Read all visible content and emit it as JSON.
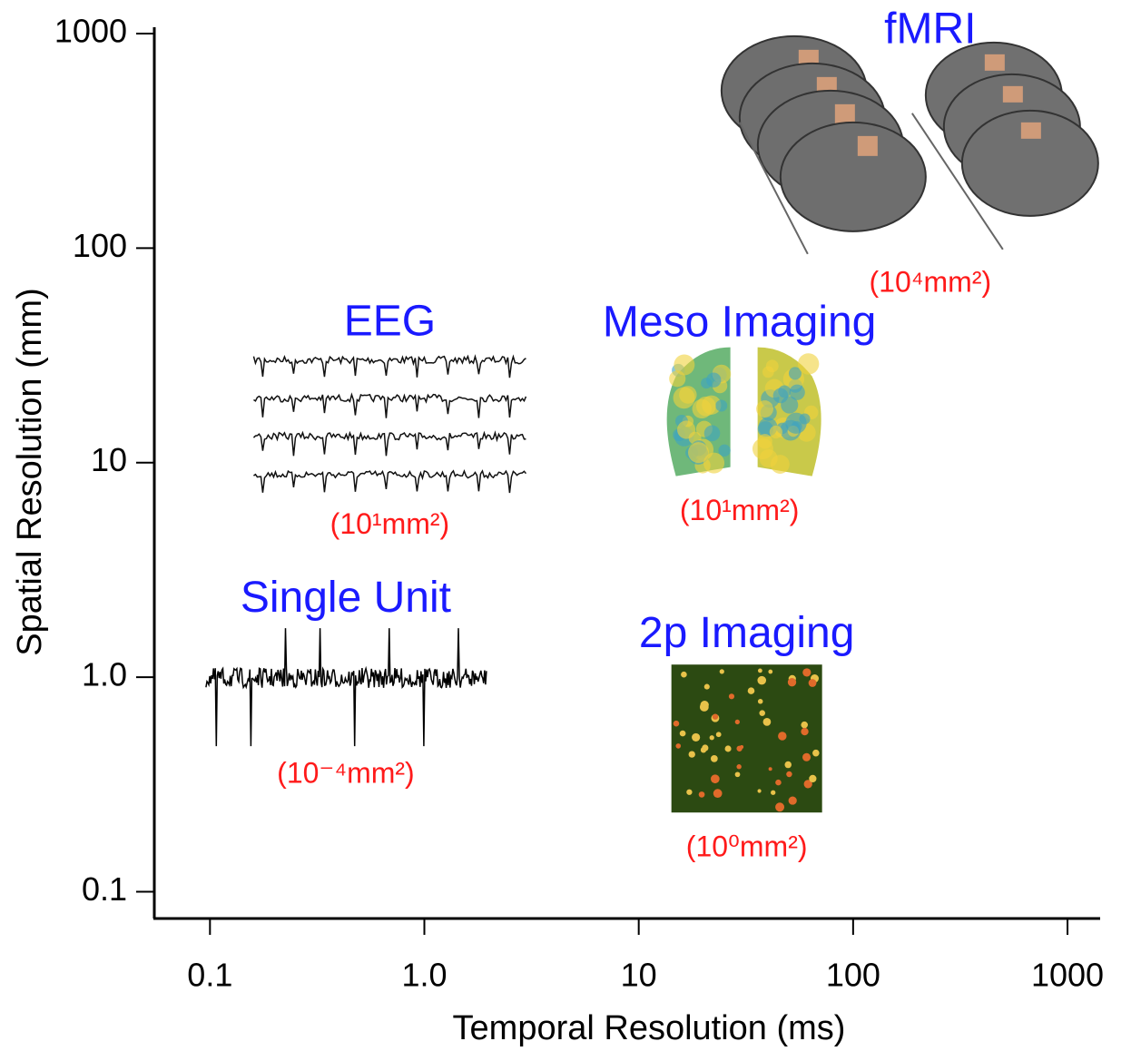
{
  "chart_data": {
    "type": "scatter",
    "x_label": "Temporal Resolution (ms)",
    "y_label": "Spatial Resolution (mm)",
    "xscale": "log",
    "yscale": "log",
    "xlim": [
      0.055,
      1420
    ],
    "ylim": [
      0.075,
      1070
    ],
    "xticks": [
      0.1,
      {
        "value": 1,
        "label": "1.0"
      },
      10,
      100,
      1000
    ],
    "yticks": [
      0.1,
      {
        "value": 1,
        "label": "1.0"
      },
      10,
      100,
      1000
    ],
    "label_color": "#1a1aff",
    "sublabel_color": "#ff1a1a",
    "points": [
      {
        "label": "fMRI",
        "sublabel": "(10⁴mm²)",
        "x": 229,
        "y": 274
      },
      {
        "label": "EEG",
        "sublabel": "(10¹mm²)",
        "x": 0.69,
        "y": 15.5
      },
      {
        "label": "Meso Imaging",
        "sublabel": "(10¹mm²)",
        "x": 29.5,
        "y": 17.1
      },
      {
        "label": "Single Unit",
        "sublabel": "(10⁻⁴mm²)",
        "x": 0.43,
        "y": 0.99
      },
      {
        "label": "2p Imaging",
        "sublabel": "(10⁰mm²)",
        "x": 31.9,
        "y": 0.52
      }
    ]
  }
}
